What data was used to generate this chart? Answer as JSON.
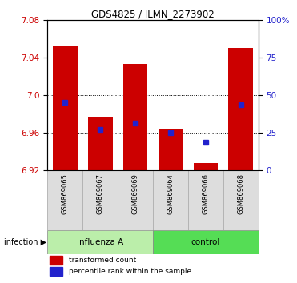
{
  "title": "GDS4825 / ILMN_2273902",
  "samples": [
    "GSM869065",
    "GSM869067",
    "GSM869069",
    "GSM869064",
    "GSM869066",
    "GSM869068"
  ],
  "groups": [
    "influenza A",
    "influenza A",
    "influenza A",
    "control",
    "control",
    "control"
  ],
  "bar_top": [
    7.052,
    6.977,
    7.033,
    6.964,
    6.928,
    7.05
  ],
  "bar_bottom": [
    6.92,
    6.92,
    6.92,
    6.92,
    6.92,
    6.92
  ],
  "blue_marker": [
    6.992,
    6.963,
    6.97,
    6.96,
    6.95,
    6.99
  ],
  "ylim": [
    6.92,
    7.08
  ],
  "yticks_left": [
    6.92,
    6.96,
    7.0,
    7.04,
    7.08
  ],
  "yticks_right_vals": [
    0,
    25,
    50,
    75,
    100
  ],
  "yticks_right_pos": [
    6.92,
    6.96,
    7.0,
    7.04,
    7.08
  ],
  "bar_color": "#CC0000",
  "blue_color": "#2222CC",
  "left_tick_color": "#CC0000",
  "right_tick_color": "#2222CC",
  "influenza_color_light": "#BBEEAA",
  "influenza_color_dark": "#AADDAA",
  "control_color_light": "#55DD55",
  "control_color_dark": "#44CC44",
  "infection_label": "infection",
  "legend_red": "transformed count",
  "legend_blue": "percentile rank within the sample",
  "bar_width": 0.7,
  "blue_marker_size": 5,
  "sample_bg_color": "#DDDDDD",
  "plot_bg_color": "#FFFFFF"
}
